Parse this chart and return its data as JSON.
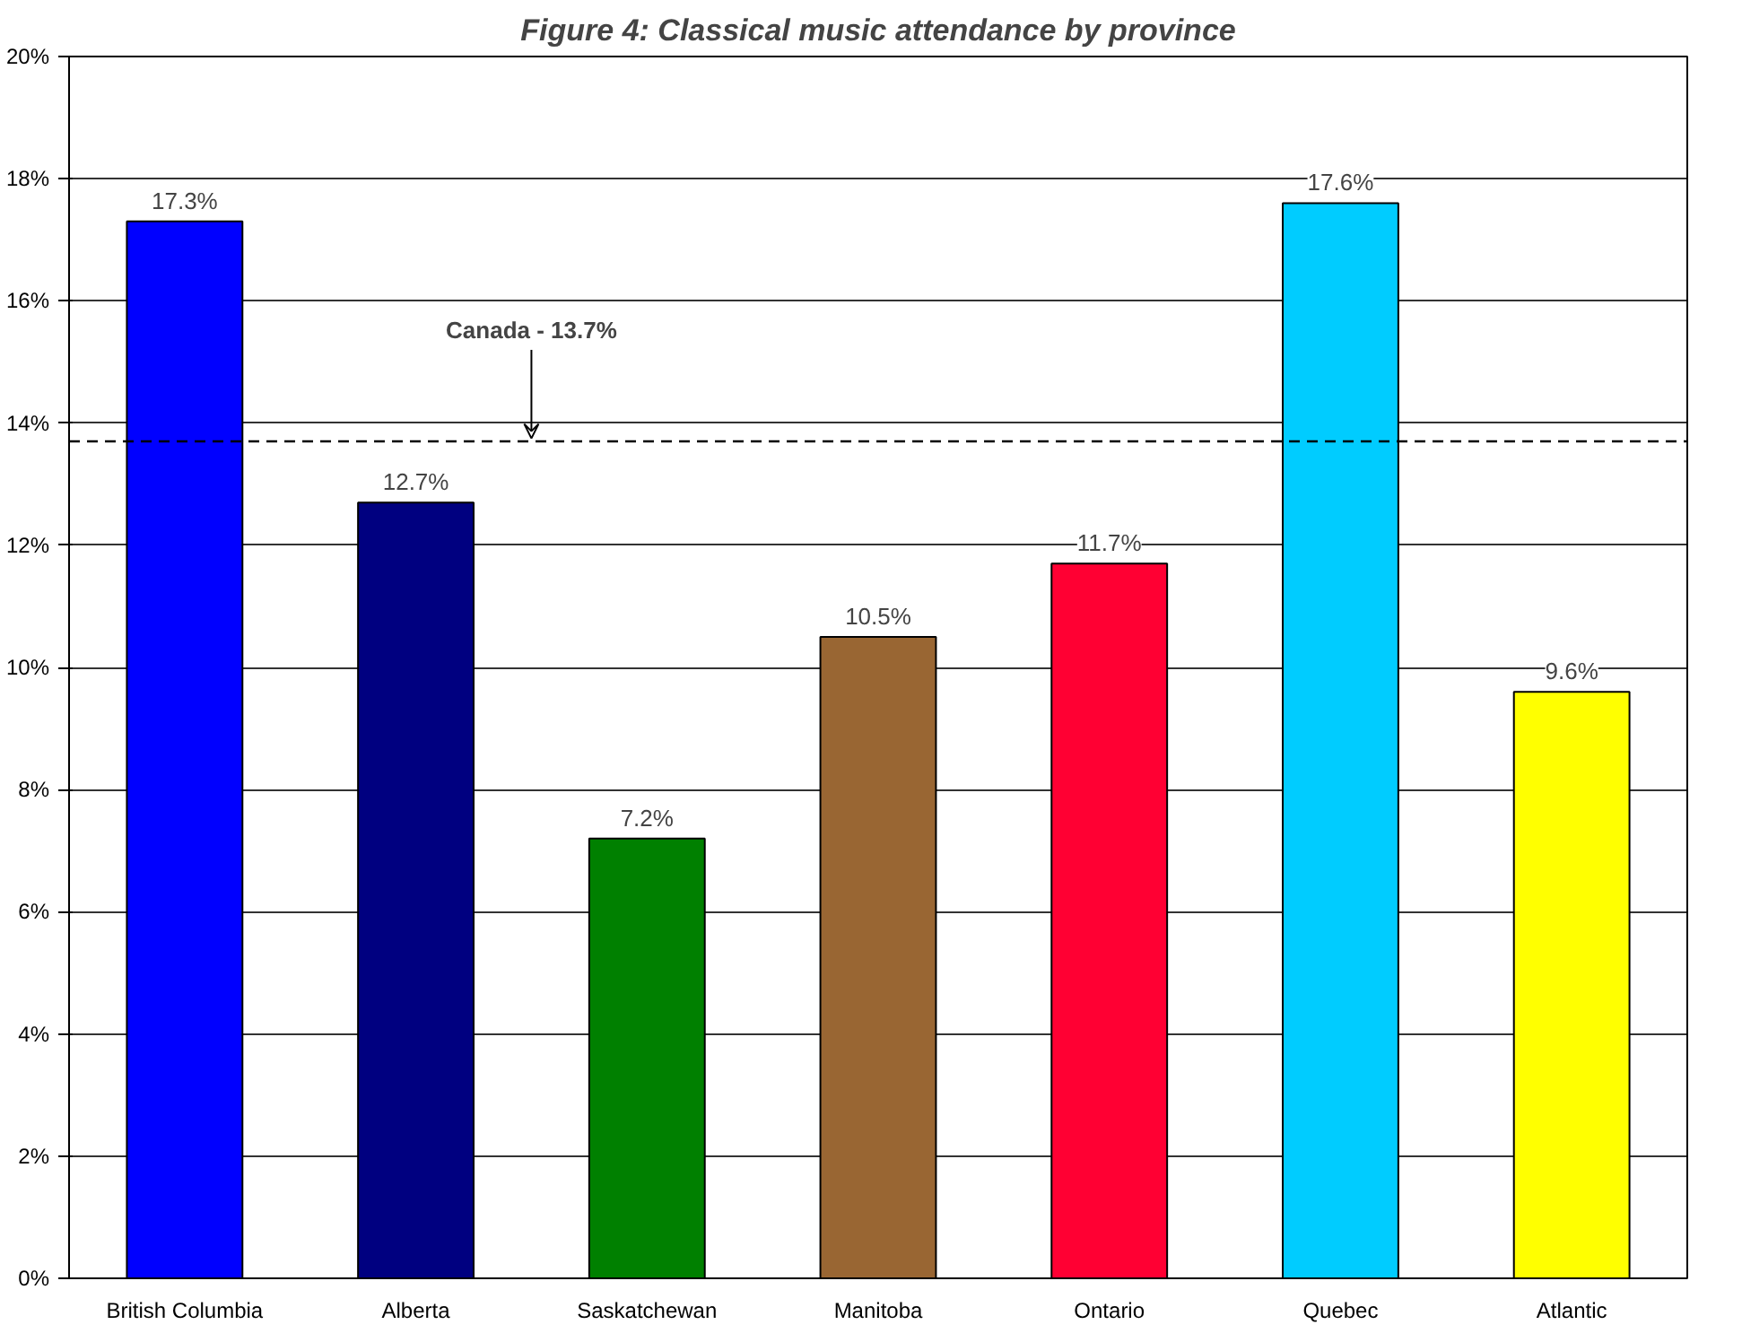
{
  "chart_data": {
    "type": "bar",
    "title": "Figure 4: Classical music attendance by province",
    "categories": [
      "British Columbia",
      "Alberta",
      "Saskatchewan",
      "Manitoba",
      "Ontario",
      "Quebec",
      "Atlantic"
    ],
    "values": [
      17.3,
      12.7,
      7.2,
      10.5,
      11.7,
      17.6,
      9.6
    ],
    "colors": [
      "#0000ff",
      "#000080",
      "#008000",
      "#996633",
      "#ff0033",
      "#00ccff",
      "#ffff00"
    ],
    "value_labels": [
      "17.3%",
      "12.7%",
      "7.2%",
      "10.5%",
      "11.7%",
      "17.6%",
      "9.6%"
    ],
    "ylim": [
      0,
      20
    ],
    "yticks": [
      {
        "value": 0,
        "label": "0%"
      },
      {
        "value": 2,
        "label": "2%"
      },
      {
        "value": 4,
        "label": "4%"
      },
      {
        "value": 6,
        "label": "6%"
      },
      {
        "value": 8,
        "label": "8%"
      },
      {
        "value": 10,
        "label": "10%"
      },
      {
        "value": 12,
        "label": "12%"
      },
      {
        "value": 14,
        "label": "14%"
      },
      {
        "value": 16,
        "label": "16%"
      },
      {
        "value": 18,
        "label": "18%"
      },
      {
        "value": 20,
        "label": "20%"
      }
    ],
    "ref_lines": [
      {
        "axis": "y",
        "value": 13.7,
        "label": "Canada - 13.7%",
        "line_style": "dashed",
        "color": "#000000"
      }
    ],
    "grid": "y"
  }
}
